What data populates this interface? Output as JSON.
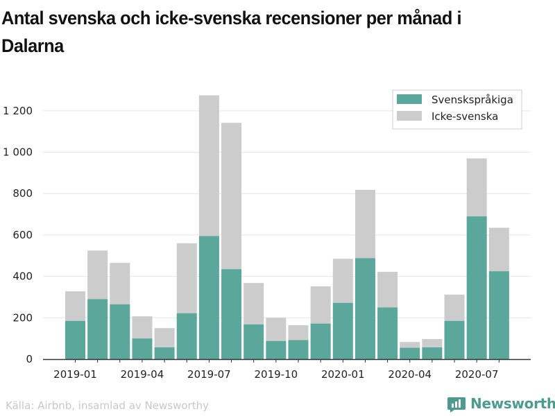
{
  "title": "Antal svenska och icke-svenska recensioner per månad i Dalarna",
  "source": "Källa: Airbnb, insamlad av Newsworthy",
  "brand": {
    "name": "Newsworthy",
    "icon": "newsworthy-logo-icon",
    "color": "#4d9a8f"
  },
  "chart_data": {
    "type": "bar",
    "stacked": true,
    "title": "Antal svenska och icke-svenska recensioner per månad i Dalarna",
    "xlabel": "",
    "ylabel": "",
    "ylim": [
      0,
      1300
    ],
    "yticks": [
      0,
      200,
      400,
      600,
      800,
      1000,
      1200
    ],
    "ytick_labels": [
      "0",
      "200",
      "400",
      "600",
      "800",
      "1 000",
      "1 200"
    ],
    "grid": "horizontal",
    "legend_position": "top-right",
    "categories": [
      "2019-01",
      "2019-02",
      "2019-03",
      "2019-04",
      "2019-05",
      "2019-06",
      "2019-07",
      "2019-08",
      "2019-09",
      "2019-10",
      "2019-11",
      "2019-12",
      "2020-01",
      "2020-02",
      "2020-03",
      "2020-04",
      "2020-05",
      "2020-06",
      "2020-07",
      "2020-08"
    ],
    "xtick_labels": [
      "2019-01",
      "2019-04",
      "2019-07",
      "2019-10",
      "2020-01",
      "2020-04",
      "2020-07"
    ],
    "series": [
      {
        "name": "Svenskspråkiga",
        "color": "#5ba79b",
        "values": [
          185,
          290,
          265,
          100,
          57,
          222,
          595,
          435,
          168,
          88,
          92,
          172,
          272,
          488,
          250,
          55,
          57,
          185,
          690,
          425
        ]
      },
      {
        "name": "Icke-svenska",
        "color": "#cccccc",
        "values": [
          143,
          235,
          200,
          107,
          93,
          338,
          680,
          707,
          200,
          112,
          72,
          180,
          213,
          330,
          172,
          28,
          40,
          127,
          280,
          210
        ]
      }
    ]
  }
}
